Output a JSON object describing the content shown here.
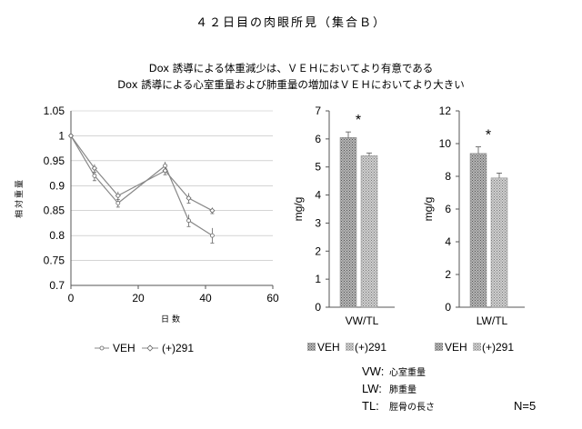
{
  "header": {
    "title": "４２日目の肉眼所見（集合Ｂ）",
    "finding_1": "Dox 誘導による体重減少は、ＶＥＨにおいてより有意である",
    "finding_2": "Dox 誘導による心室重量および肺重量の増加はＶＥＨにおいてより大きい"
  },
  "legend": {
    "line_veh": "VEH",
    "line_291": "(+)291",
    "bar_veh": "VEH",
    "bar_291": "(+)291"
  },
  "footnote": {
    "vw_key": "VW:",
    "vw_desc": "心室重量",
    "lw_key": "LW:",
    "lw_desc": "肺重量",
    "tl_key": "TL:",
    "tl_desc": "脛骨の長さ",
    "n": "N=5"
  },
  "colors": {
    "axis": "#555555",
    "grid": "#bbbbbb",
    "line": "#888888",
    "bar_veh": "#9a9a9a",
    "bar_291": "#b8b8b8"
  },
  "chart_data": [
    {
      "type": "line",
      "xlabel": "日数",
      "ylabel": "相対重量",
      "xlim": [
        0,
        60
      ],
      "ylim": [
        0.7,
        1.05
      ],
      "xticks": [
        "0",
        "20",
        "40",
        "60"
      ],
      "yticks": [
        "0.7",
        "0.75",
        "0.8",
        "0.85",
        "0.9",
        "0.95",
        "1",
        "1.05"
      ],
      "grid": true,
      "legend": "bottom",
      "series": [
        {
          "name": "VEH",
          "x": [
            0,
            7,
            14,
            28,
            35,
            42
          ],
          "y": [
            1.0,
            0.92,
            0.865,
            0.94,
            0.83,
            0.8
          ],
          "err": [
            0,
            0.01,
            0.008,
            0.008,
            0.012,
            0.015
          ]
        },
        {
          "name": "(+)291",
          "x": [
            0,
            7,
            14,
            28,
            35,
            42
          ],
          "y": [
            1.0,
            0.935,
            0.88,
            0.93,
            0.875,
            0.85
          ],
          "err": [
            0,
            0.008,
            0.008,
            0.008,
            0.01,
            0.006
          ]
        }
      ]
    },
    {
      "type": "bar",
      "ylabel": "mg/g",
      "ylim": [
        0,
        7
      ],
      "yticks": [
        "0",
        "1",
        "2",
        "3",
        "4",
        "5",
        "6",
        "7"
      ],
      "categories": [
        "VW/TL"
      ],
      "series": [
        {
          "name": "VEH",
          "values": [
            6.05
          ],
          "err": [
            0.2
          ]
        },
        {
          "name": "(+)291",
          "values": [
            5.4
          ],
          "err": [
            0.1
          ]
        }
      ],
      "annotation": "*",
      "legend": "bottom"
    },
    {
      "type": "bar",
      "ylabel": "mg/g",
      "ylim": [
        0,
        12
      ],
      "yticks": [
        "0",
        "2",
        "4",
        "6",
        "8",
        "10",
        "12"
      ],
      "categories": [
        "LW/TL"
      ],
      "series": [
        {
          "name": "VEH",
          "values": [
            9.4
          ],
          "err": [
            0.4
          ]
        },
        {
          "name": "(+)291",
          "values": [
            7.9
          ],
          "err": [
            0.3
          ]
        }
      ],
      "annotation": "*",
      "legend": "bottom"
    }
  ]
}
